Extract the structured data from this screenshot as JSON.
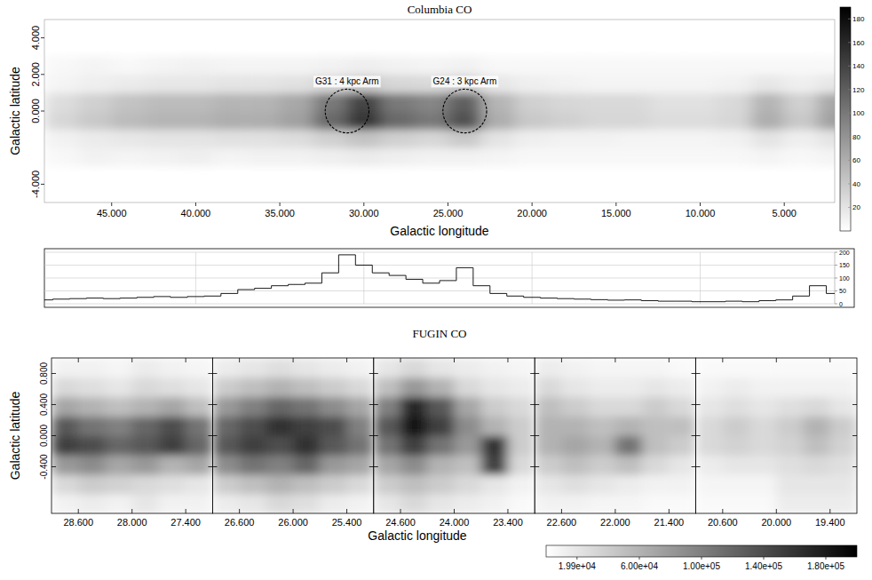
{
  "chart_data": [
    {
      "type": "heatmap",
      "title": "Columbia CO",
      "x_label": "Galactic longitude",
      "y_label": "Galactic latitude",
      "xlim": [
        49,
        2
      ],
      "ylim": [
        -5,
        5
      ],
      "xticks": [
        {
          "value": 45,
          "label": "45.000"
        },
        {
          "value": 40,
          "label": "40.000"
        },
        {
          "value": 35,
          "label": "35.000"
        },
        {
          "value": 30,
          "label": "30.000"
        },
        {
          "value": 25,
          "label": "25.000"
        },
        {
          "value": 20,
          "label": "20.000"
        },
        {
          "value": 15,
          "label": "15.000"
        },
        {
          "value": 10,
          "label": "10.000"
        },
        {
          "value": 5,
          "label": "5.000"
        }
      ],
      "yticks": [
        {
          "value": -4,
          "label": "-4.000"
        },
        {
          "value": 0,
          "label": "0.000"
        },
        {
          "value": 2,
          "label": "2.000"
        },
        {
          "value": 4,
          "label": "4.000"
        }
      ],
      "x_edges": [
        49,
        47,
        45,
        43,
        41,
        39,
        37,
        35,
        33,
        31,
        29,
        27,
        25,
        23,
        21,
        19,
        17,
        15,
        13,
        11,
        9,
        7,
        5,
        3,
        1
      ],
      "y_edges": [
        -3,
        -2,
        -1,
        0,
        1,
        2,
        3
      ],
      "cells": [
        [
          5,
          10,
          8,
          10,
          12,
          8,
          10,
          10,
          12,
          15,
          12,
          10,
          10,
          8,
          5,
          5,
          5,
          5,
          5,
          5,
          5,
          8,
          5,
          8
        ],
        [
          10,
          15,
          18,
          20,
          20,
          22,
          22,
          25,
          35,
          45,
          35,
          30,
          40,
          20,
          12,
          10,
          10,
          8,
          8,
          8,
          10,
          20,
          12,
          20
        ],
        [
          30,
          40,
          50,
          55,
          55,
          60,
          60,
          70,
          110,
          150,
          110,
          100,
          130,
          60,
          40,
          35,
          30,
          30,
          25,
          25,
          30,
          60,
          40,
          70
        ],
        [
          25,
          35,
          45,
          50,
          50,
          55,
          55,
          65,
          100,
          140,
          100,
          90,
          120,
          55,
          35,
          30,
          28,
          28,
          22,
          22,
          28,
          55,
          35,
          65
        ],
        [
          8,
          12,
          15,
          18,
          18,
          20,
          20,
          22,
          30,
          40,
          30,
          28,
          35,
          18,
          12,
          10,
          8,
          8,
          8,
          8,
          10,
          18,
          12,
          18
        ],
        [
          5,
          8,
          5,
          8,
          10,
          8,
          8,
          8,
          10,
          12,
          10,
          8,
          10,
          5,
          5,
          5,
          5,
          5,
          5,
          5,
          5,
          5,
          5,
          5
        ]
      ],
      "colorbar_range": [
        0,
        190
      ],
      "colorbar_ticks": [
        20,
        40,
        60,
        80,
        100,
        120,
        140,
        160,
        180
      ],
      "annotations": [
        {
          "text": "G31 : 4 kpc Arm",
          "x": 31,
          "y": 0,
          "r": 1.3
        },
        {
          "text": "G24 : 3 kpc Arm",
          "x": 24,
          "y": 0,
          "r": 1.3
        }
      ]
    },
    {
      "type": "line",
      "line_style": "step",
      "color": "#000000",
      "grid": true,
      "tick_labels": "y",
      "x": [
        49,
        48,
        47,
        46,
        45,
        44,
        43,
        42,
        41,
        40,
        39,
        38,
        37,
        36,
        35,
        34,
        33,
        32,
        31,
        30,
        29,
        28,
        27,
        26,
        25,
        24,
        23,
        22,
        21,
        20,
        19,
        18,
        17,
        16,
        15,
        14,
        13,
        12,
        11,
        10,
        9,
        8,
        7,
        6,
        5,
        4,
        3,
        2,
        1
      ],
      "values": [
        15,
        18,
        20,
        22,
        20,
        22,
        25,
        28,
        25,
        28,
        30,
        40,
        55,
        60,
        70,
        75,
        80,
        120,
        190,
        150,
        120,
        110,
        95,
        80,
        90,
        140,
        70,
        40,
        30,
        25,
        22,
        20,
        18,
        16,
        14,
        15,
        12,
        10,
        10,
        8,
        8,
        10,
        8,
        12,
        15,
        30,
        70,
        40,
        20
      ],
      "xlim": [
        49,
        2
      ],
      "ylim": [
        0,
        200
      ],
      "xticks": [
        40,
        30,
        20,
        10
      ],
      "yticks": [
        0,
        50,
        100,
        150,
        200
      ]
    },
    {
      "type": "heatmap",
      "title": "FUGIN CO",
      "x_label": "Galactic longitude",
      "y_label": "Galactic latitude",
      "ylim": [
        -1,
        1
      ],
      "yticks": [
        {
          "value": -0.4,
          "label": "-0.400"
        },
        {
          "value": 0,
          "label": "0.000"
        },
        {
          "value": 0.4,
          "label": "0.400"
        },
        {
          "value": 0.8,
          "label": "0.800"
        }
      ],
      "y_edges": [
        -1,
        -0.75,
        -0.5,
        -0.25,
        0,
        0.25,
        0.5,
        0.75,
        1
      ],
      "panels": [
        {
          "xlim": [
            28.9,
            27.1
          ],
          "xticks": [
            {
              "value": 28.6,
              "label": "28.600"
            },
            {
              "value": 28,
              "label": "28.000"
            },
            {
              "value": 27.4,
              "label": "27.400"
            }
          ],
          "x_edges": [
            28.9,
            28.6,
            28.3,
            28.0,
            27.7,
            27.4,
            27.1
          ],
          "cells": [
            [
              10000,
              15000,
              10000,
              20000,
              10000,
              10000
            ],
            [
              30000,
              40000,
              35000,
              30000,
              25000,
              20000
            ],
            [
              80000,
              90000,
              70000,
              80000,
              60000,
              70000
            ],
            [
              150000,
              140000,
              120000,
              130000,
              150000,
              120000
            ],
            [
              130000,
              110000,
              100000,
              120000,
              140000,
              110000
            ],
            [
              70000,
              60000,
              50000,
              60000,
              70000,
              50000
            ],
            [
              30000,
              25000,
              20000,
              30000,
              25000,
              20000
            ],
            [
              10000,
              10000,
              8000,
              15000,
              10000,
              8000
            ]
          ]
        },
        {
          "xlim": [
            26.9,
            25.1
          ],
          "xticks": [
            {
              "value": 26.6,
              "label": "26.600"
            },
            {
              "value": 26,
              "label": "26.000"
            },
            {
              "value": 25.4,
              "label": "25.400"
            }
          ],
          "x_edges": [
            26.9,
            26.6,
            26.3,
            26.0,
            25.7,
            25.4,
            25.1
          ],
          "cells": [
            [
              15000,
              20000,
              30000,
              25000,
              15000,
              10000
            ],
            [
              40000,
              50000,
              60000,
              50000,
              40000,
              30000
            ],
            [
              90000,
              110000,
              100000,
              120000,
              80000,
              70000
            ],
            [
              130000,
              150000,
              140000,
              160000,
              130000,
              110000
            ],
            [
              120000,
              140000,
              160000,
              150000,
              140000,
              100000
            ],
            [
              80000,
              100000,
              120000,
              110000,
              90000,
              70000
            ],
            [
              40000,
              50000,
              60000,
              50000,
              40000,
              30000
            ],
            [
              15000,
              20000,
              25000,
              20000,
              15000,
              10000
            ]
          ]
        },
        {
          "xlim": [
            24.9,
            23.1
          ],
          "xticks": [
            {
              "value": 24.6,
              "label": "24.600"
            },
            {
              "value": 24,
              "label": "24.000"
            },
            {
              "value": 23.4,
              "label": "23.400"
            }
          ],
          "x_edges": [
            24.9,
            24.6,
            24.3,
            24.0,
            23.7,
            23.4,
            23.1
          ],
          "cells": [
            [
              20000,
              30000,
              20000,
              15000,
              10000,
              5000
            ],
            [
              40000,
              50000,
              40000,
              30000,
              20000,
              10000
            ],
            [
              70000,
              90000,
              60000,
              50000,
              150000,
              30000
            ],
            [
              110000,
              150000,
              110000,
              80000,
              160000,
              40000
            ],
            [
              130000,
              180000,
              150000,
              90000,
              60000,
              40000
            ],
            [
              100000,
              170000,
              130000,
              70000,
              40000,
              30000
            ],
            [
              50000,
              80000,
              60000,
              30000,
              20000,
              15000
            ],
            [
              20000,
              30000,
              20000,
              15000,
              10000,
              8000
            ]
          ]
        },
        {
          "xlim": [
            22.9,
            21.1
          ],
          "xticks": [
            {
              "value": 22.6,
              "label": "22.600"
            },
            {
              "value": 22,
              "label": "22.000"
            },
            {
              "value": 21.4,
              "label": "21.400"
            }
          ],
          "x_edges": [
            22.9,
            22.6,
            22.3,
            22.0,
            21.7,
            21.4,
            21.1
          ],
          "cells": [
            [
              10000,
              10000,
              8000,
              8000,
              5000,
              5000
            ],
            [
              20000,
              25000,
              20000,
              15000,
              10000,
              10000
            ],
            [
              40000,
              50000,
              40000,
              50000,
              30000,
              20000
            ],
            [
              60000,
              70000,
              60000,
              110000,
              50000,
              40000
            ],
            [
              60000,
              60000,
              50000,
              60000,
              50000,
              50000
            ],
            [
              50000,
              40000,
              30000,
              30000,
              40000,
              30000
            ],
            [
              30000,
              20000,
              15000,
              15000,
              20000,
              15000
            ],
            [
              15000,
              10000,
              8000,
              8000,
              8000,
              5000
            ]
          ]
        },
        {
          "xlim": [
            20.9,
            19.1
          ],
          "xticks": [
            {
              "value": 20.6,
              "label": "20.600"
            },
            {
              "value": 20,
              "label": "20.000"
            },
            {
              "value": 19.4,
              "label": "19.400"
            }
          ],
          "x_edges": [
            20.9,
            20.6,
            20.3,
            20.0,
            19.7,
            19.4,
            19.1
          ],
          "cells": [
            [
              5000,
              5000,
              5000,
              15000,
              15000,
              15000
            ],
            [
              8000,
              8000,
              8000,
              20000,
              20000,
              20000
            ],
            [
              15000,
              20000,
              20000,
              25000,
              30000,
              25000
            ],
            [
              30000,
              35000,
              30000,
              35000,
              50000,
              35000
            ],
            [
              30000,
              40000,
              30000,
              40000,
              60000,
              40000
            ],
            [
              20000,
              25000,
              20000,
              25000,
              30000,
              20000
            ],
            [
              10000,
              15000,
              10000,
              10000,
              10000,
              10000
            ],
            [
              5000,
              5000,
              5000,
              5000,
              5000,
              5000
            ]
          ]
        }
      ],
      "colorbar_range": [
        0,
        200000
      ],
      "colorbar_ticks": [
        {
          "value": 19900,
          "label": "1.99e+04"
        },
        {
          "value": 60000,
          "label": "6.00e+04"
        },
        {
          "value": 100000,
          "label": "1.00e+05"
        },
        {
          "value": 140000,
          "label": "1.40e+05"
        },
        {
          "value": 180000,
          "label": "1.80e+05"
        }
      ]
    }
  ]
}
